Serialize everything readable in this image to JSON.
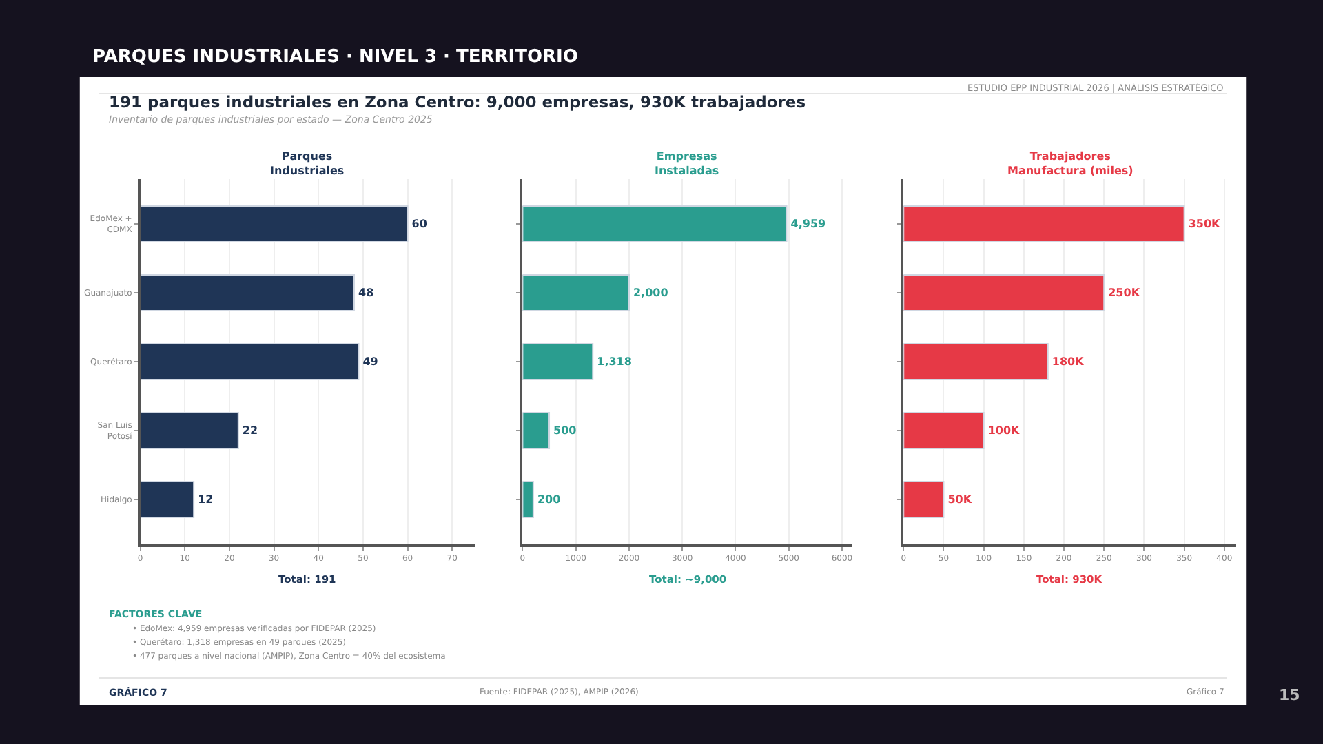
{
  "chart_data": [
    {
      "type": "other",
      "title": "191 parques industriales en Zona Centro: 9,000 empresas, 930K trabajadores",
      "subtitle": "Inventario de parques industriales por estado — Zona Centro 2025",
      "annotations": [
        "PARQUES INDUSTRIALES · NIVEL 3 · TERRITORIO",
        "ESTUDIO EPP INDUSTRIAL 2026 | ANÁLISIS ESTRATÉGICO",
        "FACTORES CLAVE",
        "• EdoMex: 4,959 empresas verificadas por FIDEPAR (2025)",
        "• Querétaro: 1,318 empresas en 49 parques (2025)",
        "• 477 parques a nivel nacional (AMPIP), Zona Centro = 40% del ecosistema",
        "GRÁFICO 7",
        "Fuente: FIDEPAR (2025), AMPIP (2026)",
        "Gráfico 7",
        "15"
      ]
    },
    {
      "type": "bar",
      "orientation": "horizontal",
      "title": "Parques\nIndustriales",
      "categories": [
        "EdoMex +\nCDMX",
        "Guanajuato",
        "Querétaro",
        "San Luis\nPotosí",
        "Hidalgo"
      ],
      "values": [
        60,
        48,
        49,
        22,
        12
      ],
      "color": "#1f3556",
      "data_labels": true,
      "xlim": [
        0,
        75
      ],
      "xticks": [
        0,
        10,
        20,
        30,
        40,
        50,
        60,
        70
      ],
      "grid": "x",
      "annotations": [
        "Total: 191"
      ]
    },
    {
      "type": "bar",
      "orientation": "horizontal",
      "title": "Empresas\nInstaladas",
      "categories": [
        null,
        null,
        null,
        null,
        null
      ],
      "values": [
        4959,
        2000,
        1318,
        500,
        200
      ],
      "color": "#2a9d8f",
      "value_labels": [
        "4,959",
        "2,000",
        "1,318",
        "500",
        "200"
      ],
      "xlim": [
        0,
        6200
      ],
      "xticks": [
        0,
        1000,
        2000,
        3000,
        4000,
        5000,
        6000
      ],
      "grid": "x",
      "tick_labels": "x",
      "annotations": [
        "Total: ~9,000"
      ]
    },
    {
      "type": "bar",
      "orientation": "horizontal",
      "title": "Trabajadores\nManufactura (miles)",
      "categories": [
        null,
        null,
        null,
        null,
        null
      ],
      "values": [
        350,
        250,
        180,
        100,
        50
      ],
      "color": "#e63946",
      "value_labels": [
        "350K",
        "250K",
        "180K",
        "100K",
        "50K"
      ],
      "xlim": [
        0,
        415
      ],
      "xticks": [
        0,
        50,
        100,
        150,
        200,
        250,
        300,
        350,
        400
      ],
      "grid": "x",
      "tick_labels": "x",
      "annotations": [
        "Total: 930K"
      ]
    }
  ]
}
